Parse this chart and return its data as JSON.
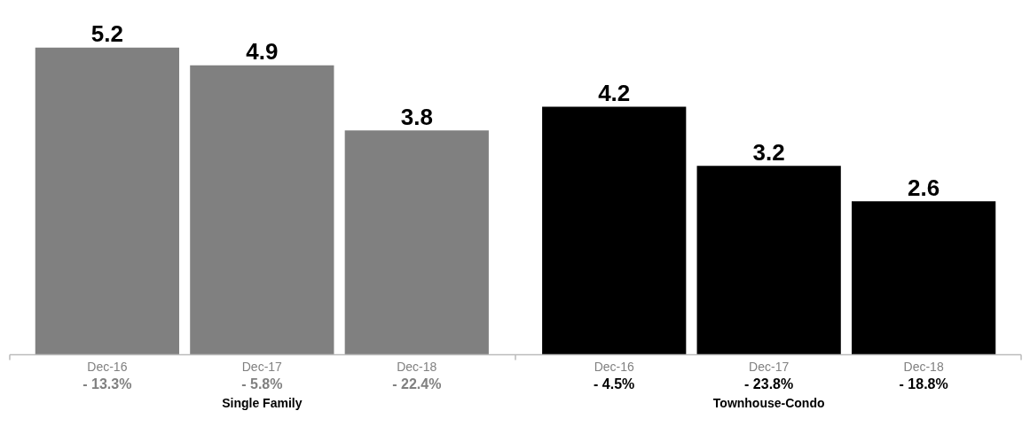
{
  "chart_data": {
    "type": "bar",
    "categories": [
      "Dec-16",
      "Dec-17",
      "Dec-18",
      "Dec-16",
      "Dec-17",
      "Dec-18"
    ],
    "series": [
      {
        "color": "#808080",
        "values": [
          5.2,
          4.9,
          3.8,
          null,
          null,
          null
        ]
      },
      {
        "color": "#000000",
        "values": [
          null,
          null,
          null,
          4.2,
          3.2,
          2.6
        ]
      }
    ],
    "annotations": [
      "- 13.3%",
      "- 5.8%",
      "- 22.4%",
      "- 4.5%",
      "- 23.8%",
      "- 18.8%",
      "Single Family",
      "Townhouse-Condo"
    ],
    "data_labels": true,
    "grid": false
  }
}
